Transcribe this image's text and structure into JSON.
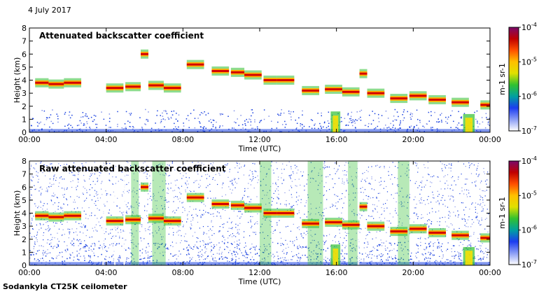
{
  "date": "4 July 2017",
  "footer": "Sodankyla CT25K ceilometer",
  "colors": {
    "cloud_core": "#d40000",
    "cloud_edge": "#ffb000",
    "cloud_halo": "#30c030",
    "noise_low": "#1840e0",
    "noise_mid": "#8090e8",
    "precip": "#ffe000",
    "axis": "#000000"
  },
  "colorbar": {
    "unit_label": "m-1 sr-1",
    "ticks": [
      {
        "base": "10",
        "exp": "-4"
      },
      {
        "base": "10",
        "exp": "-5"
      },
      {
        "base": "10",
        "exp": "-6"
      },
      {
        "base": "10",
        "exp": "-7"
      }
    ],
    "stops": [
      "#7a0a6a",
      "#c00000",
      "#ff5000",
      "#ffc000",
      "#e0e000",
      "#30c030",
      "#00a0a0",
      "#1c3cf0",
      "#8a9cf5",
      "#ffffff"
    ]
  },
  "chart_data": [
    {
      "type": "heatmap",
      "title": "Attenuated backscatter coefficient",
      "xlabel": "Time (UTC)",
      "ylabel": "Height (km)",
      "x_ticks": [
        "00:00",
        "04:00",
        "08:00",
        "12:00",
        "16:00",
        "20:00",
        "00:00"
      ],
      "y_ticks": [
        "0",
        "1",
        "2",
        "3",
        "4",
        "5",
        "6",
        "7",
        "8"
      ],
      "xlim_hours": [
        0,
        24
      ],
      "ylim_km": [
        0,
        8
      ],
      "colorscale_range": [
        "1e-7",
        "1e-4"
      ],
      "cloud_base_km": [
        {
          "t": 0.3,
          "h": 3.8
        },
        {
          "t": 1.0,
          "h": 3.7
        },
        {
          "t": 1.8,
          "h": 3.8
        },
        {
          "t": 4.0,
          "h": 3.4
        },
        {
          "t": 5.0,
          "h": 3.5
        },
        {
          "t": 5.8,
          "h": 6.0
        },
        {
          "t": 6.2,
          "h": 3.6
        },
        {
          "t": 7.0,
          "h": 3.4
        },
        {
          "t": 8.2,
          "h": 5.2
        },
        {
          "t": 9.5,
          "h": 4.7
        },
        {
          "t": 10.5,
          "h": 4.6
        },
        {
          "t": 11.2,
          "h": 4.4
        },
        {
          "t": 12.2,
          "h": 4.0
        },
        {
          "t": 12.9,
          "h": 4.0
        },
        {
          "t": 14.2,
          "h": 3.2
        },
        {
          "t": 15.4,
          "h": 3.3
        },
        {
          "t": 16.3,
          "h": 3.1
        },
        {
          "t": 17.2,
          "h": 4.5
        },
        {
          "t": 17.6,
          "h": 3.0
        },
        {
          "t": 18.8,
          "h": 2.6
        },
        {
          "t": 19.8,
          "h": 2.8
        },
        {
          "t": 20.8,
          "h": 2.5
        },
        {
          "t": 22.0,
          "h": 2.3
        },
        {
          "t": 23.5,
          "h": 2.1
        }
      ]
    },
    {
      "type": "heatmap",
      "title": "Raw attenuated backscatter coefficient",
      "xlabel": "Time (UTC)",
      "ylabel": "Height (km)",
      "x_ticks": [
        "00:00",
        "04:00",
        "08:00",
        "12:00",
        "16:00",
        "20:00",
        "00:00"
      ],
      "y_ticks": [
        "0",
        "1",
        "2",
        "3",
        "4",
        "5",
        "6",
        "7",
        "8"
      ],
      "xlim_hours": [
        0,
        24
      ],
      "ylim_km": [
        0,
        8
      ],
      "colorscale_range": [
        "1e-7",
        "1e-4"
      ],
      "cloud_base_km": [
        {
          "t": 0.3,
          "h": 3.8
        },
        {
          "t": 1.0,
          "h": 3.7
        },
        {
          "t": 1.8,
          "h": 3.8
        },
        {
          "t": 4.0,
          "h": 3.4
        },
        {
          "t": 5.0,
          "h": 3.5
        },
        {
          "t": 5.8,
          "h": 6.0
        },
        {
          "t": 6.2,
          "h": 3.6
        },
        {
          "t": 7.0,
          "h": 3.4
        },
        {
          "t": 8.2,
          "h": 5.2
        },
        {
          "t": 9.5,
          "h": 4.7
        },
        {
          "t": 10.5,
          "h": 4.6
        },
        {
          "t": 11.2,
          "h": 4.4
        },
        {
          "t": 12.2,
          "h": 4.0
        },
        {
          "t": 12.9,
          "h": 4.0
        },
        {
          "t": 14.2,
          "h": 3.2
        },
        {
          "t": 15.4,
          "h": 3.3
        },
        {
          "t": 16.3,
          "h": 3.1
        },
        {
          "t": 17.2,
          "h": 4.5
        },
        {
          "t": 17.6,
          "h": 3.0
        },
        {
          "t": 18.8,
          "h": 2.6
        },
        {
          "t": 19.8,
          "h": 2.8
        },
        {
          "t": 20.8,
          "h": 2.5
        },
        {
          "t": 22.0,
          "h": 2.3
        },
        {
          "t": 23.5,
          "h": 2.1
        }
      ]
    }
  ]
}
